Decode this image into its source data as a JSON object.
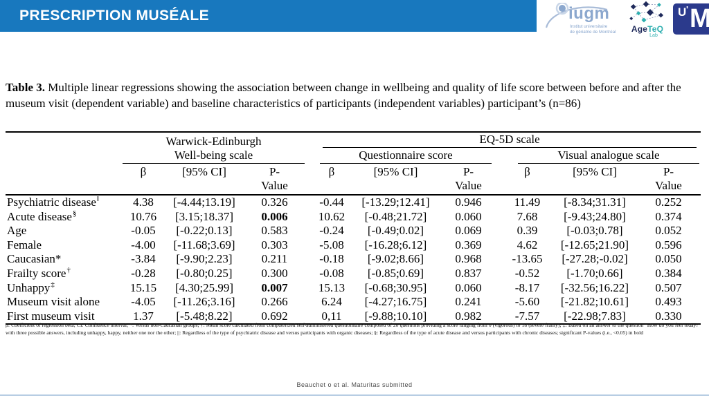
{
  "header": {
    "title": "PRESCRIPTION MUSÉALE"
  },
  "logos": {
    "iugm_name": "iugm",
    "iugm_tagline1": "Institut universitaire",
    "iugm_tagline2": "de gériatrie de Montréal",
    "ageteq_name_a": "Age",
    "ageteq_name_b": "Te",
    "ageteq_name_c": "Q",
    "ageteq_sub": "Lab",
    "udem_u": "U",
    "udem_accent": "'",
    "udem_m": "M"
  },
  "title": {
    "label": "Table 3.",
    "text": " Multiple linear regressions showing the association between change in wellbeing and quality of life score between before and after the museum visit (dependent variable) and baseline characteristics of participants (independent variables) participant’s (n=86)"
  },
  "table": {
    "scale1_line1": "Warwick-Edinburgh",
    "scale1_line2": "Well-being scale",
    "scale2": "EQ-5D scale",
    "sub_questionnaire": "Questionnaire score",
    "sub_visual": "Visual analogue scale",
    "col_beta": "β",
    "col_ci": "[95% CI]",
    "col_p_line1": "P-",
    "col_p_line2": "Value",
    "rows": [
      {
        "label": "Psychiatric disease",
        "sup": "‖",
        "values": [
          "4.38",
          "[-4.44;13.19]",
          "0.326",
          "-0.44",
          "[-13.29;12.41]",
          "0.946",
          "11.49",
          "[-8.34;31.31]",
          "0.252"
        ],
        "bold": []
      },
      {
        "label": "Acute disease",
        "sup": "§",
        "values": [
          "10.76",
          "[3.15;18.37]",
          "0.006",
          "10.62",
          "[-0.48;21.72]",
          "0.060",
          "7.68",
          "[-9.43;24.80]",
          "0.374"
        ],
        "bold": [
          2
        ]
      },
      {
        "label": "Age",
        "sup": "",
        "values": [
          "-0.05",
          "[-0.22;0.13]",
          "0.583",
          "-0.24",
          "[-0.49;0.02]",
          "0.069",
          "0.39",
          "[-0.03;0.78]",
          "0.052"
        ],
        "bold": []
      },
      {
        "label": "Female",
        "sup": "",
        "values": [
          "-4.00",
          "[-11.68;3.69]",
          "0.303",
          "-5.08",
          "[-16.28;6.12]",
          "0.369",
          "4.62",
          "[-12.65;21.90]",
          "0.596"
        ],
        "bold": []
      },
      {
        "label": "Caucasian*",
        "sup": "",
        "values": [
          "-3.84",
          "[-9.90;2.23]",
          "0.211",
          "-0.18",
          "[-9.02;8.66]",
          "0.968",
          "-13.65",
          "[-27.28;-0.02]",
          "0.050"
        ],
        "bold": []
      },
      {
        "label": "Frailty score",
        "sup": "†",
        "values": [
          "-0.28",
          "[-0.80;0.25]",
          "0.300",
          "-0.08",
          "[-0.85;0.69]",
          "0.837",
          "-0.52",
          "[-1.70;0.66]",
          "0.384"
        ],
        "bold": []
      },
      {
        "label": "Unhappy",
        "sup": "‡",
        "values": [
          "15.15",
          "[4.30;25.99]",
          "0.007",
          "15.13",
          "[-0.68;30.95]",
          "0.060",
          "-8.17",
          "[-32.56;16.22]",
          "0.507"
        ],
        "bold": [
          2
        ]
      },
      {
        "label": "Museum visit alone",
        "sup": "",
        "values": [
          "-4.05",
          "[-11.26;3.16]",
          "0.266",
          "6.24",
          "[-4.27;16.75]",
          "0.241",
          "-5.60",
          "[-21.82;10.61]",
          "0.493"
        ],
        "bold": []
      },
      {
        "label": "First museum visit",
        "sup": "",
        "values": [
          "1.37",
          "[-5.48;8.22]",
          "0.692",
          "0,11",
          "[-9.88;10.10]",
          "0.982",
          "-7.57",
          "[-22.98;7.83]",
          "0.330"
        ],
        "bold": []
      }
    ]
  },
  "footnote": "β: Coefficient of regression beta; CI: Confidence interval; *: Versus non-Caucasian groups; †: Mean score calculated from computerized self-administered questionnaire composed of 20 questions providing a score ranging from 0 (vigorous) to 18 (severe frailty); ‡: Based on an answer to the question “How do you feel today?” with three possible answers, including unhappy, happy, neither one nor the other; ||: Regardless of the type of psychiatric disease and versus participants with organic diseases; §: Regardless of the type of acute disease and versus participants with chronic diseases; significant P-values (i.e., <0.05) in bold",
  "footer": {
    "caption": "Beauchet o et al. Maturitas submitted"
  },
  "colors": {
    "header_bar": "#1878BE",
    "udem_navy": "#2B3A8C",
    "ageteq_teal": "#2FAFB0",
    "ageteq_navy": "#1F2A5B",
    "iugm_blue": "#8CA8CE",
    "footer_line": "#B7CDE3"
  }
}
